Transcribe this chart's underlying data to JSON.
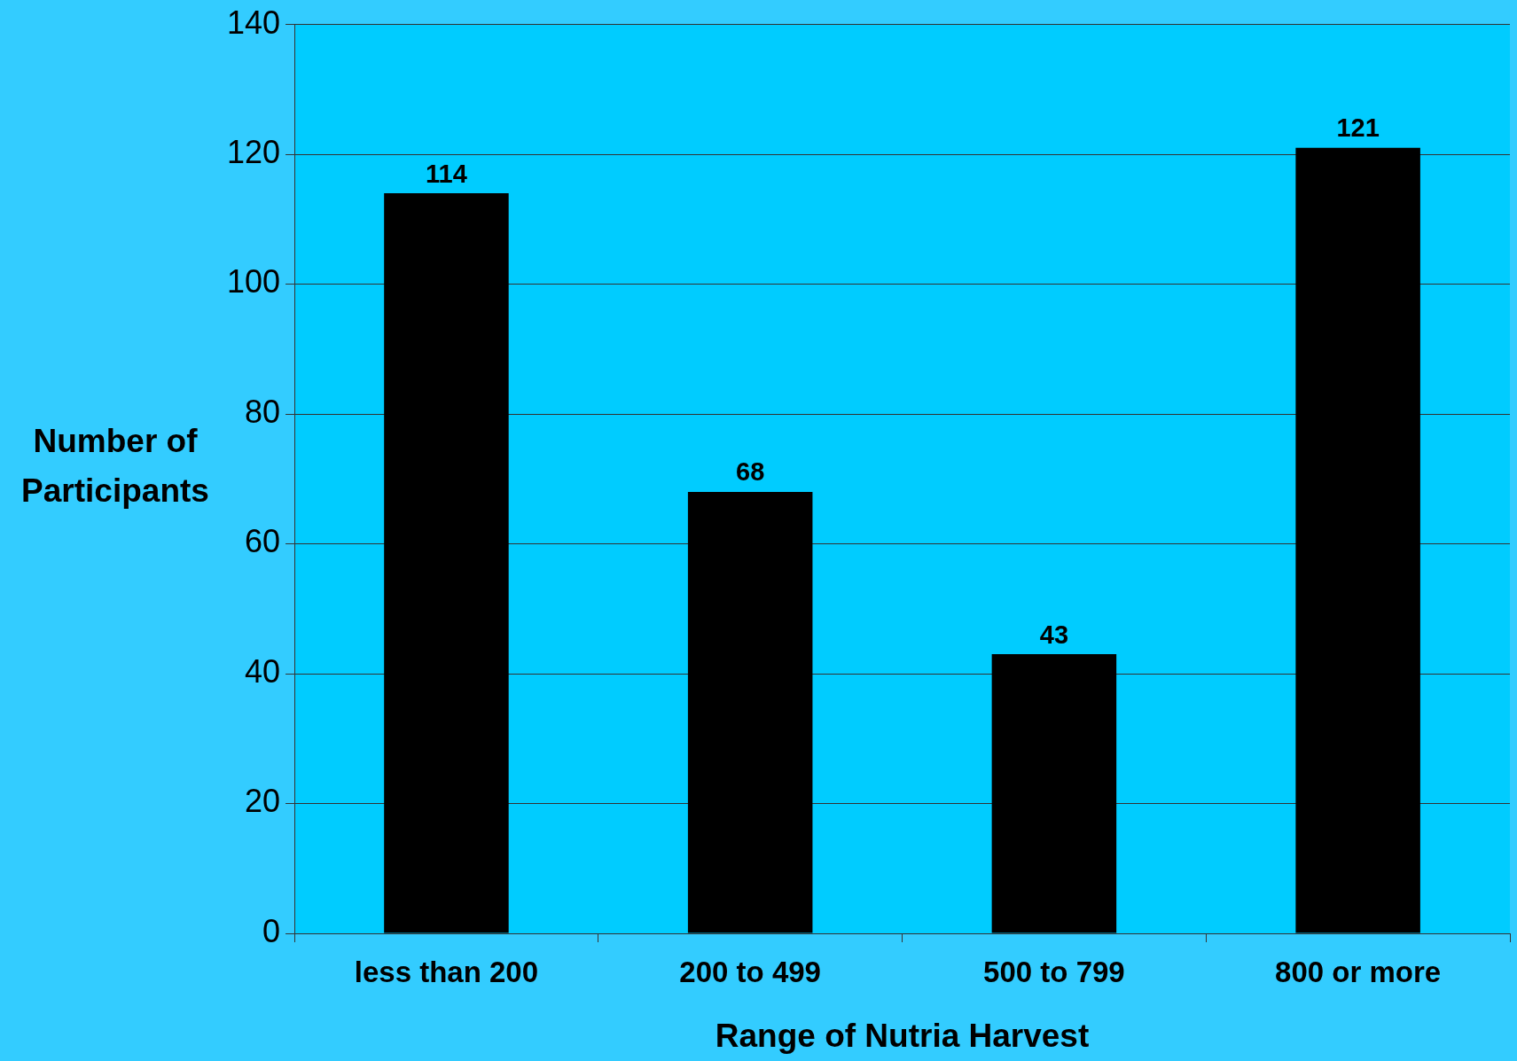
{
  "chart_data": {
    "type": "bar",
    "xlabel": "Range of Nutria Harvest",
    "ylabel": "Number of Participants",
    "categories": [
      "less than 200",
      "200 to 499",
      "500 to 799",
      "800 or more"
    ],
    "values": [
      114,
      68,
      43,
      121
    ],
    "color": "#000000",
    "ylim": [
      0,
      140
    ],
    "yticks": [
      0,
      20,
      40,
      60,
      80,
      100,
      120,
      140
    ],
    "grid": "y",
    "data_labels": true
  }
}
